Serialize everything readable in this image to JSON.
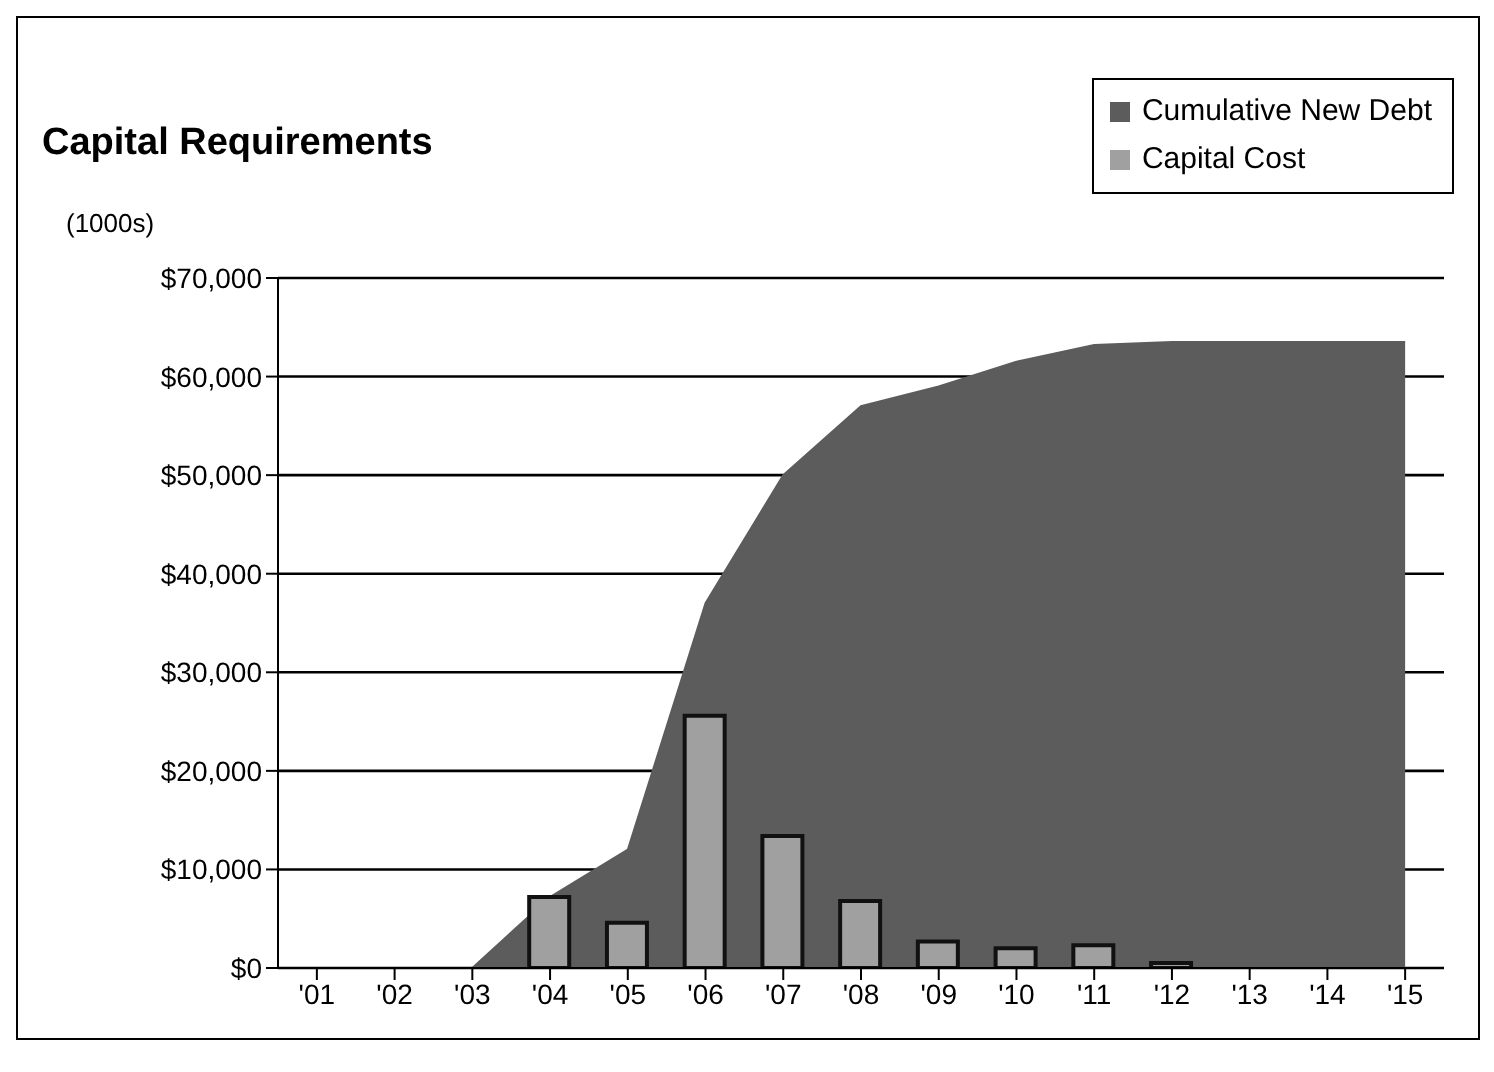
{
  "chart_data": {
    "type": "bar",
    "title": "Capital Requirements",
    "ylabel": "(1000s)",
    "categories": [
      "'01",
      "'02",
      "'03",
      "'04",
      "'05",
      "'06",
      "'07",
      "'08",
      "'09",
      "'10",
      "'11",
      "'12",
      "'13",
      "'14",
      "'15"
    ],
    "series": [
      {
        "name": "Cumulative New Debt",
        "type": "area",
        "color": "#5c5c5c",
        "values": [
          null,
          null,
          0,
          7200,
          12000,
          37000,
          50000,
          57000,
          59000,
          61500,
          63200,
          63500,
          63500,
          63500,
          63500
        ]
      },
      {
        "name": "Capital Cost",
        "color": "#a0a0a0",
        "values": [
          null,
          null,
          null,
          7200,
          4600,
          25600,
          13400,
          6800,
          2700,
          2000,
          2300,
          500,
          null,
          null,
          null
        ]
      }
    ],
    "ylim": [
      0,
      70000
    ],
    "yticks": [
      {
        "value": 0,
        "label": "$0"
      },
      {
        "value": 10000,
        "label": "$10,000"
      },
      {
        "value": 20000,
        "label": "$20,000"
      },
      {
        "value": 30000,
        "label": "$30,000"
      },
      {
        "value": 40000,
        "label": "$40,000"
      },
      {
        "value": 50000,
        "label": "$50,000"
      },
      {
        "value": 60000,
        "label": "$60,000"
      },
      {
        "value": 70000,
        "label": "$70,000"
      }
    ],
    "grid": "y",
    "legend": "top right"
  }
}
